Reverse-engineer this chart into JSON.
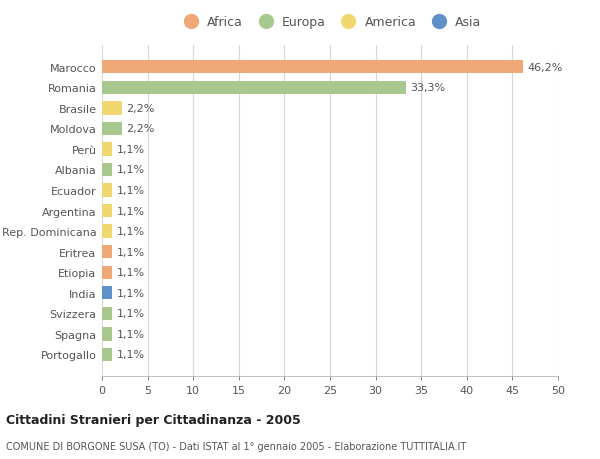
{
  "countries": [
    "Marocco",
    "Romania",
    "Brasile",
    "Moldova",
    "Perù",
    "Albania",
    "Ecuador",
    "Argentina",
    "Rep. Dominicana",
    "Eritrea",
    "Etiopia",
    "India",
    "Svizzera",
    "Spagna",
    "Portogallo"
  ],
  "values": [
    46.2,
    33.3,
    2.2,
    2.2,
    1.1,
    1.1,
    1.1,
    1.1,
    1.1,
    1.1,
    1.1,
    1.1,
    1.1,
    1.1,
    1.1
  ],
  "labels": [
    "46,2%",
    "33,3%",
    "2,2%",
    "2,2%",
    "1,1%",
    "1,1%",
    "1,1%",
    "1,1%",
    "1,1%",
    "1,1%",
    "1,1%",
    "1,1%",
    "1,1%",
    "1,1%",
    "1,1%"
  ],
  "continents": [
    "Africa",
    "Europa",
    "America",
    "Europa",
    "America",
    "Europa",
    "America",
    "America",
    "America",
    "Africa",
    "Africa",
    "Asia",
    "Europa",
    "Europa",
    "Europa"
  ],
  "colors": {
    "Africa": "#F0A878",
    "Europa": "#A8C890",
    "America": "#F0D870",
    "Asia": "#6090C8"
  },
  "legend_order": [
    "Africa",
    "Europa",
    "America",
    "Asia"
  ],
  "title1": "Cittadini Stranieri per Cittadinanza - 2005",
  "title2": "COMUNE DI BORGONE SUSA (TO) - Dati ISTAT al 1° gennaio 2005 - Elaborazione TUTTITALIA.IT",
  "xlim": [
    0,
    50
  ],
  "xticks": [
    0,
    5,
    10,
    15,
    20,
    25,
    30,
    35,
    40,
    45,
    50
  ],
  "background_color": "#ffffff",
  "grid_color": "#d8d8d8",
  "bar_height": 0.65,
  "label_fontsize": 8,
  "ytick_fontsize": 8,
  "xtick_fontsize": 8
}
